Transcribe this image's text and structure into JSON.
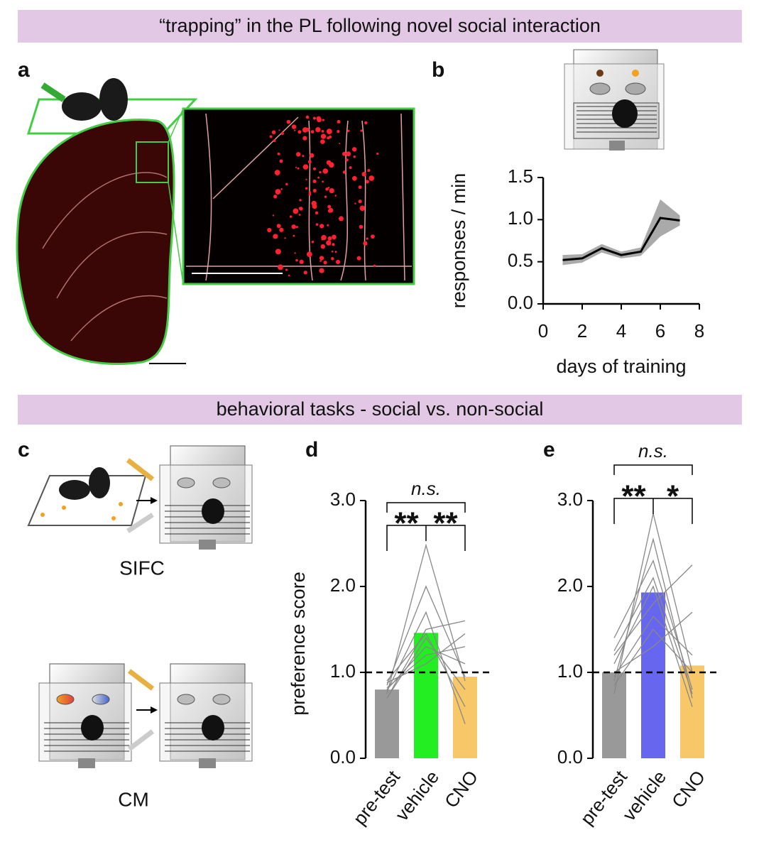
{
  "banners": [
    "“trapping” in the PL following novel social interaction",
    "behavioral tasks - social vs. non-social"
  ],
  "panel_letters": [
    "a",
    "b",
    "c",
    "d",
    "e"
  ],
  "schematic_labels": [
    "SIFC",
    "CM"
  ],
  "chart_data": [
    {
      "type": "line",
      "x": [
        1,
        2,
        3,
        4,
        5,
        6,
        7
      ],
      "series": [
        {
          "color": "#000000",
          "band_color": "#aaaaaa",
          "values": [
            0.52,
            0.54,
            0.66,
            0.58,
            0.62,
            1.02,
            0.99
          ],
          "error": [
            0.06,
            0.05,
            0.05,
            0.04,
            0.05,
            0.22,
            0.06
          ]
        }
      ],
      "xlabel": "days of training",
      "ylabel": "responses / min",
      "xlim": [
        0,
        8
      ],
      "xticks": [
        0,
        2,
        4,
        6,
        8
      ],
      "ylim": [
        0,
        1.5
      ],
      "yticks": [
        {
          "value": 0,
          "label": "0.0"
        },
        0.5,
        {
          "value": 1,
          "label": "1.0"
        },
        1.5
      ]
    },
    {
      "type": "bar",
      "categories": [
        "pre-test",
        "vehicle",
        "CNO"
      ],
      "values": [
        0.8,
        1.46,
        0.95
      ],
      "colors": [
        "#999999",
        "#22ee22",
        "#f8c868"
      ],
      "individuals": [
        [
          0.75,
          2.48,
          0.9
        ],
        [
          0.85,
          2.0,
          0.95
        ],
        [
          0.7,
          1.5,
          1.6
        ],
        [
          0.8,
          1.3,
          1.1
        ],
        [
          0.9,
          1.45,
          0.6
        ],
        [
          0.78,
          1.7,
          0.4
        ],
        [
          0.82,
          1.2,
          1.3
        ],
        [
          0.7,
          1.4,
          0.8
        ],
        [
          0.88,
          1.1,
          1.45
        ]
      ],
      "reference_line": 1,
      "annotations": [
        "n.s.",
        "**",
        "**"
      ],
      "ylabel": "preference score",
      "ylim": [
        0,
        3
      ],
      "yticks": [
        {
          "value": 0,
          "label": "0.0"
        },
        {
          "value": 1,
          "label": "1.0"
        },
        {
          "value": 2,
          "label": "2.0"
        },
        {
          "value": 3,
          "label": "3.0"
        }
      ]
    },
    {
      "type": "bar",
      "categories": [
        "pre-test",
        "vehicle",
        "CNO"
      ],
      "values": [
        1.0,
        1.93,
        1.08
      ],
      "colors": [
        "#999999",
        "#6666ee",
        "#f8c868"
      ],
      "individuals": [
        [
          0.75,
          2.85,
          1.0
        ],
        [
          0.9,
          2.55,
          0.7
        ],
        [
          1.4,
          2.3,
          0.8
        ],
        [
          1.2,
          1.8,
          2.25
        ],
        [
          0.85,
          1.5,
          1.0
        ],
        [
          1.0,
          1.3,
          1.7
        ],
        [
          1.1,
          2.0,
          0.6
        ],
        [
          0.95,
          1.65,
          1.2
        ],
        [
          1.25,
          2.1,
          0.75
        ]
      ],
      "reference_line": 1,
      "annotations": [
        "n.s.",
        "**",
        "*"
      ],
      "ylim": [
        0,
        3
      ],
      "yticks": [
        {
          "value": 0,
          "label": "0.0"
        },
        {
          "value": 1,
          "label": "1.0"
        },
        {
          "value": 2,
          "label": "2.0"
        },
        {
          "value": 3,
          "label": "3.0"
        }
      ]
    }
  ]
}
